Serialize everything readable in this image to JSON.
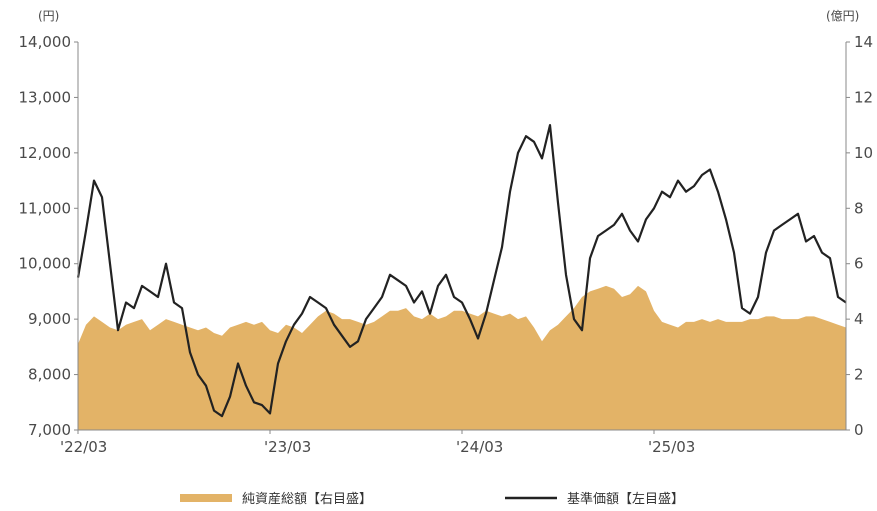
{
  "chart_data": {
    "type": "area+line",
    "left_unit": "(円)",
    "right_unit": "(億円)",
    "left_ticks": [
      "7,000",
      "8,000",
      "9,000",
      "10,000",
      "11,000",
      "12,000",
      "13,000",
      "14,000"
    ],
    "right_ticks": [
      "0",
      "2",
      "4",
      "6",
      "8",
      "10",
      "12",
      "14"
    ],
    "x_ticks": [
      "'22/03",
      "'23/03",
      "'24/03",
      "'25/03"
    ],
    "ylim_left": [
      7000,
      14000
    ],
    "ylim_right": [
      0,
      14
    ],
    "xlim": [
      0,
      48
    ],
    "x_tick_positions": [
      0,
      12,
      24,
      36
    ],
    "grid": false,
    "legend_position": "bottom",
    "colors": {
      "area": "#E3B367",
      "line": "#222222"
    },
    "series": [
      {
        "name": "純資産総額【右目盛】",
        "axis": "right",
        "kind": "area",
        "x": [
          0,
          0.5,
          1,
          1.5,
          2,
          2.5,
          3,
          3.5,
          4,
          4.5,
          5,
          5.5,
          6,
          6.5,
          7,
          7.5,
          8,
          8.5,
          9,
          9.5,
          10,
          10.5,
          11,
          11.5,
          12,
          12.5,
          13,
          13.5,
          14,
          14.5,
          15,
          15.5,
          16,
          16.5,
          17,
          17.5,
          18,
          18.5,
          19,
          19.5,
          20,
          20.5,
          21,
          21.5,
          22,
          22.5,
          23,
          23.5,
          24,
          24.5,
          25,
          25.5,
          26,
          26.5,
          27,
          27.5,
          28,
          28.5,
          29,
          29.5,
          30,
          30.5,
          31,
          31.5,
          32,
          32.5,
          33,
          33.5,
          34,
          34.5,
          35,
          35.5,
          36,
          36.5,
          37,
          37.5,
          38,
          38.5,
          39,
          39.5,
          40,
          40.5,
          41,
          41.5,
          42,
          42.5,
          43,
          43.5,
          44,
          44.5,
          45,
          45.5,
          46,
          46.5,
          47,
          47.5,
          48
        ],
        "values": [
          3.1,
          3.8,
          4.1,
          3.9,
          3.7,
          3.6,
          3.8,
          3.9,
          4.0,
          3.6,
          3.8,
          4.0,
          3.9,
          3.8,
          3.7,
          3.6,
          3.7,
          3.5,
          3.4,
          3.7,
          3.8,
          3.9,
          3.8,
          3.9,
          3.6,
          3.5,
          3.8,
          3.7,
          3.5,
          3.8,
          4.1,
          4.3,
          4.2,
          4.0,
          4.0,
          3.9,
          3.8,
          3.9,
          4.1,
          4.3,
          4.3,
          4.4,
          4.1,
          4.0,
          4.2,
          4.0,
          4.1,
          4.3,
          4.3,
          4.2,
          4.1,
          4.3,
          4.2,
          4.1,
          4.2,
          4.0,
          4.1,
          3.7,
          3.2,
          3.6,
          3.8,
          4.1,
          4.4,
          4.8,
          5.0,
          5.1,
          5.2,
          5.1,
          4.8,
          4.9,
          5.2,
          5.0,
          4.3,
          3.9,
          3.8,
          3.7,
          3.9,
          3.9,
          4.0,
          3.9,
          4.0,
          3.9,
          3.9,
          3.9,
          4.0,
          4.0,
          4.1,
          4.1,
          4.0,
          4.0,
          4.0,
          4.1,
          4.1,
          4.0,
          3.9,
          3.8,
          3.7
        ]
      },
      {
        "name": "基準価額【左目盛】",
        "axis": "left",
        "kind": "line",
        "x": [
          0,
          0.5,
          1,
          1.5,
          2,
          2.5,
          3,
          3.5,
          4,
          4.5,
          5,
          5.5,
          6,
          6.5,
          7,
          7.5,
          8,
          8.5,
          9,
          9.5,
          10,
          10.5,
          11,
          11.5,
          12,
          12.5,
          13,
          13.5,
          14,
          14.5,
          15,
          15.5,
          16,
          16.5,
          17,
          17.5,
          18,
          18.5,
          19,
          19.5,
          20,
          20.5,
          21,
          21.5,
          22,
          22.5,
          23,
          23.5,
          24,
          24.5,
          25,
          25.5,
          26,
          26.5,
          27,
          27.5,
          28,
          28.5,
          29,
          29.5,
          30,
          30.5,
          31,
          31.5,
          32,
          32.5,
          33,
          33.5,
          34,
          34.5,
          35,
          35.5,
          36,
          36.5,
          37,
          37.5,
          38,
          38.5,
          39,
          39.5,
          40,
          40.5,
          41,
          41.5,
          42,
          42.5,
          43,
          43.5,
          44,
          44.5,
          45,
          45.5,
          46,
          46.5,
          47,
          47.5,
          48
        ],
        "values": [
          9750,
          10600,
          11500,
          11200,
          10000,
          8800,
          9300,
          9200,
          9600,
          9500,
          9400,
          10000,
          9300,
          9200,
          8400,
          8000,
          7800,
          7350,
          7250,
          7600,
          8200,
          7800,
          7500,
          7450,
          7300,
          8200,
          8600,
          8900,
          9100,
          9400,
          9300,
          9200,
          8900,
          8700,
          8500,
          8600,
          9000,
          9200,
          9400,
          9800,
          9700,
          9600,
          9300,
          9500,
          9100,
          9600,
          9800,
          9400,
          9300,
          9000,
          8650,
          9100,
          9700,
          10300,
          11300,
          12000,
          12300,
          12200,
          11900,
          12500,
          11100,
          9800,
          9000,
          8800,
          10100,
          10500,
          10600,
          10700,
          10900,
          10600,
          10400,
          10800,
          11000,
          11300,
          11200,
          11500,
          11300,
          11400,
          11600,
          11700,
          11300,
          10800,
          10200,
          9200,
          9100,
          9400,
          10200,
          10600,
          10700,
          10800,
          10900,
          10400,
          10500,
          10200,
          10100,
          9400,
          9300
        ]
      }
    ]
  }
}
